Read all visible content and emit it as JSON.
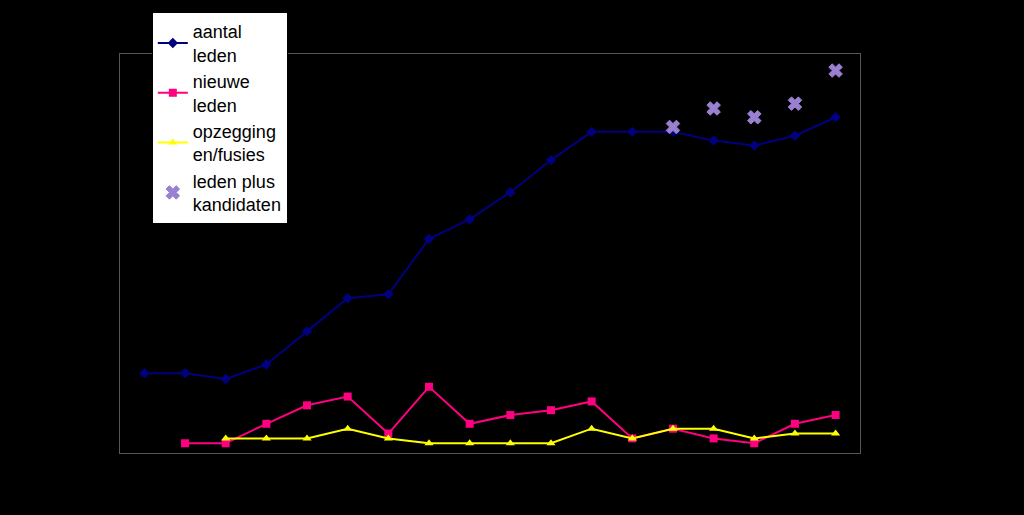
{
  "chart_data": {
    "type": "line",
    "categories": [
      null,
      null,
      null,
      null,
      null,
      null,
      null,
      null,
      null,
      null,
      null,
      null,
      null,
      null,
      null,
      null,
      null,
      null
    ],
    "series": [
      {
        "name": "aantal leden",
        "color": "#000080",
        "marker": "diamond",
        "line_style": "solid",
        "values": [
          7.2,
          7.2,
          6.6,
          8.1,
          11.5,
          14.9,
          15.3,
          21,
          23,
          25.8,
          29.1,
          32,
          32,
          32,
          31.1,
          30.6,
          31.6,
          33.5
        ]
      },
      {
        "name": "nieuwe leden",
        "color": "#ff0080",
        "marker": "square",
        "line_style": "solid",
        "values": [
          null,
          0,
          0,
          2,
          3.9,
          4.8,
          1,
          5.8,
          2,
          2.9,
          3.4,
          4.3,
          0.5,
          1.5,
          0.5,
          0,
          2,
          2.9
        ]
      },
      {
        "name": "opzeggingen/fusies",
        "color": "#ffff00",
        "marker": "triangle-up",
        "line_style": "solid",
        "values": [
          null,
          null,
          0.5,
          0.5,
          0.5,
          1.5,
          0.5,
          0,
          0,
          0,
          0,
          1.5,
          0.5,
          1.5,
          1.5,
          0.5,
          1,
          1
        ]
      },
      {
        "name": "leden plus kandidaten",
        "color": "#9980d0",
        "marker": "x",
        "line_style": "none",
        "values": [
          null,
          null,
          null,
          null,
          null,
          null,
          null,
          null,
          null,
          null,
          null,
          null,
          null,
          32.5,
          34.4,
          33.5,
          34.9,
          38.3
        ]
      }
    ],
    "ylim": [
      -1,
      40
    ],
    "yticks": [],
    "grid": false,
    "legend": "top-left",
    "tick_labels": false
  }
}
